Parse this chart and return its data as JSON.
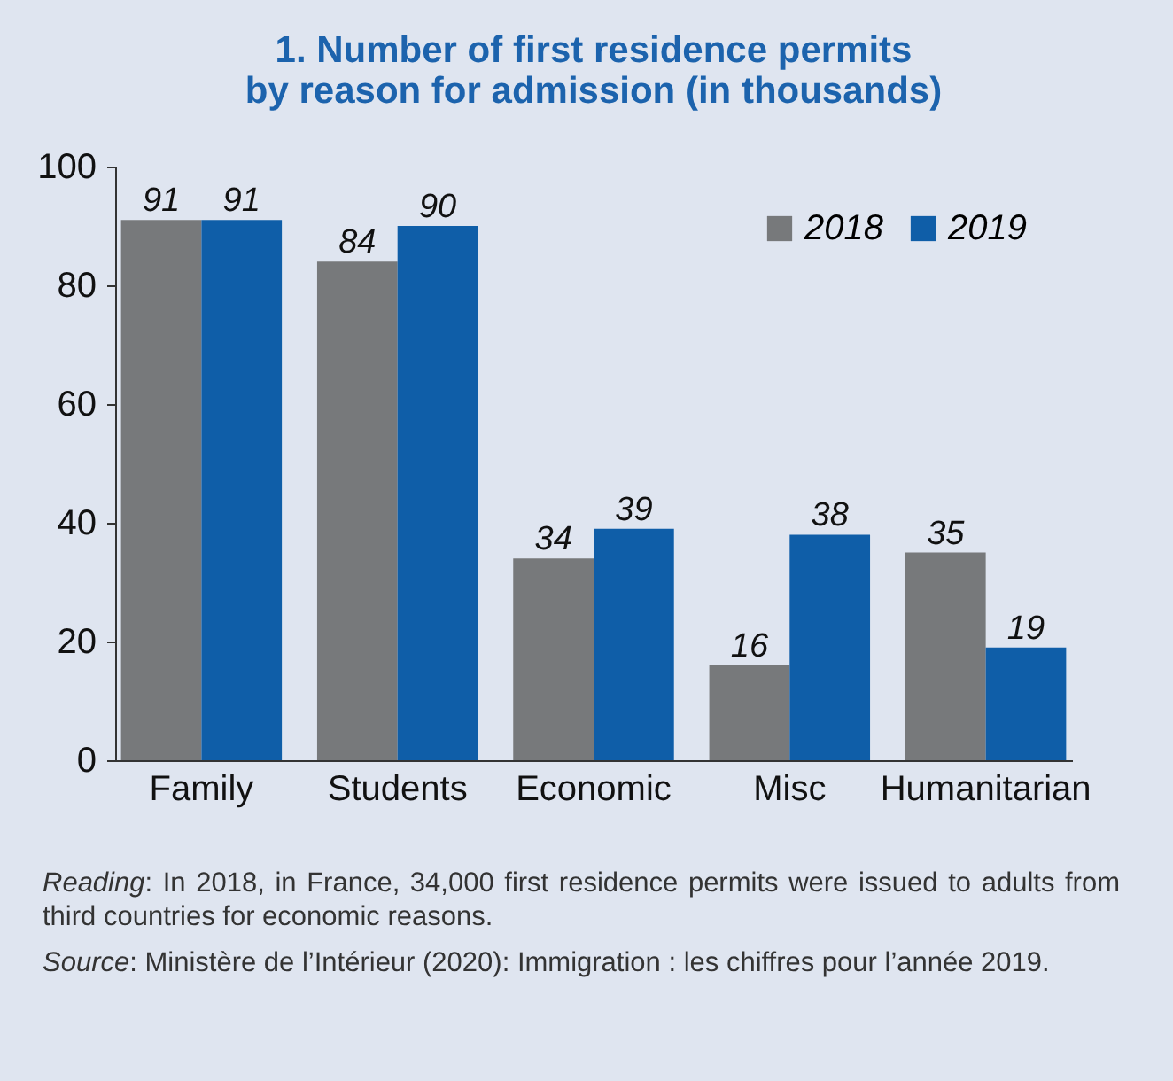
{
  "chart_data": {
    "type": "bar",
    "title": "1. Number of first residence permits\nby reason for admission (in thousands)",
    "categories": [
      "Family",
      "Students",
      "Economic",
      "Misc",
      "Humanitarian"
    ],
    "series": [
      {
        "name": "2018",
        "color": "#77797b",
        "values": [
          91,
          84,
          34,
          16,
          35
        ]
      },
      {
        "name": "2019",
        "color": "#0f5ea8",
        "values": [
          91,
          90,
          39,
          38,
          19
        ]
      }
    ],
    "ylim": [
      0,
      100
    ],
    "yticks": [
      0,
      20,
      40,
      60,
      80,
      100
    ],
    "grid": false,
    "legend": "top right",
    "data_labels": true,
    "annotations": [
      "Reading: In 2018, in France, 34,000 first residence permits were issued to adults from third countries for economic reasons.",
      "Source: Ministère de l’Intérieur (2020): Immigration : les chiffres pour l’année 2019."
    ]
  }
}
